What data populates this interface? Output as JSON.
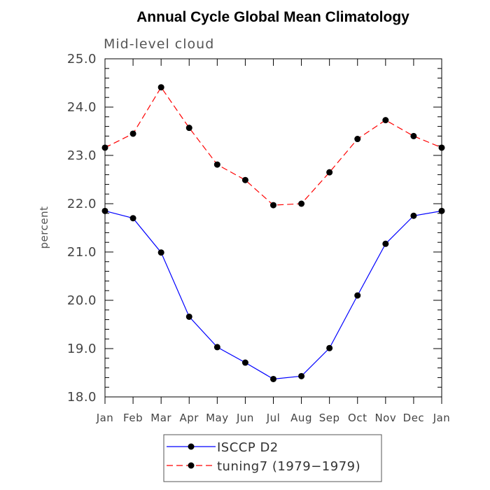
{
  "chart_data": {
    "type": "line",
    "title": "Annual Cycle Global Mean Climatology",
    "subtitle": "Mid-level cloud",
    "xlabel": "",
    "ylabel": "percent",
    "categories": [
      "Jan",
      "Feb",
      "Mar",
      "Apr",
      "May",
      "Jun",
      "Jul",
      "Aug",
      "Sep",
      "Oct",
      "Nov",
      "Dec",
      "Jan"
    ],
    "ylim": [
      18.0,
      25.0
    ],
    "yticks": [
      "18.0",
      "19.0",
      "20.0",
      "21.0",
      "22.0",
      "23.0",
      "24.0",
      "25.0"
    ],
    "series": [
      {
        "name": "ISCCP D2",
        "color": "#0000ff",
        "dash": "solid",
        "values": [
          21.85,
          21.7,
          20.99,
          19.66,
          19.03,
          18.71,
          18.37,
          18.43,
          19.01,
          20.1,
          21.17,
          21.75,
          21.85
        ]
      },
      {
        "name": "tuning7 (1979−1979)",
        "color": "#ff0000",
        "dash": "dashed",
        "values": [
          23.16,
          23.45,
          24.41,
          23.57,
          22.81,
          22.49,
          21.97,
          22.0,
          22.65,
          23.34,
          23.73,
          23.4,
          23.16
        ]
      }
    ]
  }
}
